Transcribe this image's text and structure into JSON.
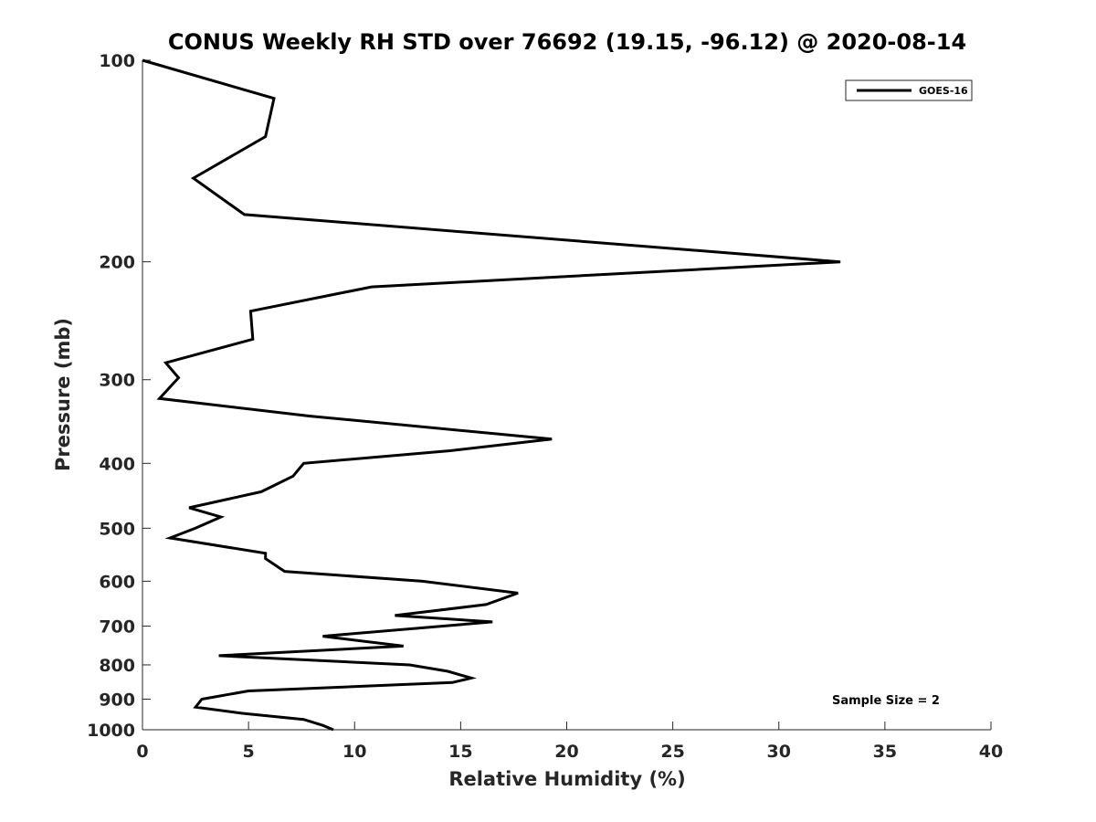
{
  "chart_data": {
    "type": "line",
    "title": "CONUS Weekly RH STD over 76692 (19.15, -96.12) @ 2020-08-14",
    "xlabel": "Relative Humidity (%)",
    "ylabel": "Pressure (mb)",
    "xlim": [
      0,
      40
    ],
    "ylim": [
      100,
      1000
    ],
    "yscale": "log",
    "y_reversed": true,
    "grid": false,
    "legend_position": "top-right",
    "x_ticks": [
      "0",
      "5",
      "10",
      "15",
      "20",
      "25",
      "30",
      "35",
      "40"
    ],
    "y_ticks": [
      "100",
      "200",
      "300",
      "400",
      "500",
      "600",
      "700",
      "800",
      "900",
      "1000"
    ],
    "annotation": "Sample Size = 2",
    "series": [
      {
        "name": "GOES-16",
        "color": "#000000",
        "x": [
          0.0,
          6.2,
          5.8,
          2.4,
          4.8,
          32.9,
          10.8,
          5.1,
          5.2,
          1.1,
          1.7,
          0.8,
          7.9,
          19.3,
          14.5,
          7.6,
          7.1,
          5.6,
          2.2,
          3.7,
          2.5,
          1.3,
          5.8,
          5.8,
          6.7,
          13.2,
          17.7,
          16.2,
          11.9,
          16.5,
          8.5,
          12.3,
          3.6,
          12.6,
          14.4,
          15.5,
          14.6,
          5.0,
          2.8,
          2.5,
          4.7,
          7.6,
          8.5,
          9.0
        ],
        "y": [
          100,
          114,
          130,
          150,
          170,
          200,
          218,
          237,
          261,
          283,
          298,
          320,
          340,
          368,
          383,
          400,
          418,
          441,
          466,
          481,
          500,
          517,
          545,
          555,
          580,
          600,
          625,
          650,
          675,
          690,
          725,
          750,
          775,
          800,
          818,
          837,
          850,
          875,
          900,
          925,
          945,
          965,
          985,
          1000
        ]
      }
    ]
  }
}
